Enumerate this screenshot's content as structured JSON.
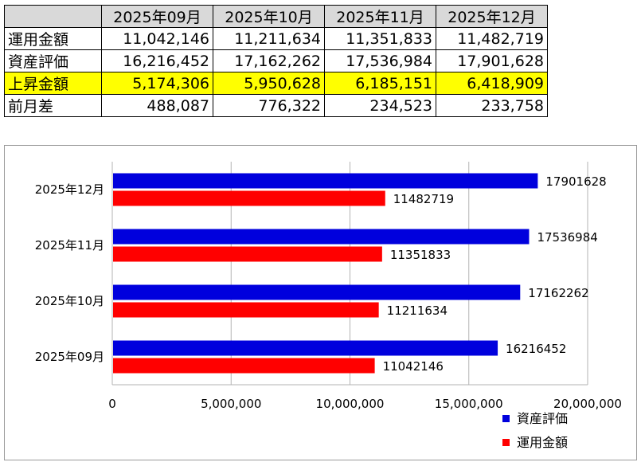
{
  "table": {
    "corner": "",
    "months": [
      "2025年09月",
      "2025年10月",
      "2025年11月",
      "2025年12月"
    ],
    "rows": [
      {
        "label": "運用金額",
        "values": [
          "11,042,146",
          "11,211,634",
          "11,351,833",
          "11,482,719"
        ],
        "highlight": false
      },
      {
        "label": "資産評価",
        "values": [
          "16,216,452",
          "17,162,262",
          "17,536,984",
          "17,901,628"
        ],
        "highlight": false
      },
      {
        "label": "上昇金額",
        "values": [
          "5,174,306",
          "5,950,628",
          "6,185,151",
          "6,418,909"
        ],
        "highlight": true
      },
      {
        "label": "前月差",
        "values": [
          "488,087",
          "776,322",
          "234,523",
          "233,758"
        ],
        "highlight": false
      }
    ],
    "highlight_color": "#ffff00",
    "header_color": "#d9d9d9"
  },
  "chart_data": {
    "type": "bar",
    "orientation": "horizontal",
    "categories": [
      "2025年09月",
      "2025年10月",
      "2025年11月",
      "2025年12月"
    ],
    "series": [
      {
        "name": "資産評価",
        "values": [
          16216452,
          17162262,
          17536984,
          17901628
        ],
        "color": "#0000dd"
      },
      {
        "name": "運用金額",
        "values": [
          11042146,
          11211634,
          11351833,
          11482719
        ],
        "color": "#ff0000"
      }
    ],
    "xlim": [
      0,
      20000000
    ],
    "xticks": [
      0,
      5000000,
      10000000,
      15000000,
      20000000
    ],
    "xtick_labels": [
      "0",
      "5,000,000",
      "10,000,000",
      "15,000,000",
      "20,000,000"
    ],
    "data_labels": true,
    "grid": "vertical",
    "legend": "bottom-right",
    "title": "",
    "xlabel": "",
    "ylabel": ""
  }
}
